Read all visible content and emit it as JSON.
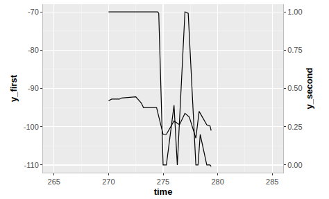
{
  "chart_data": {
    "type": "line",
    "x_label": "time",
    "y_label": "y_first",
    "y2_label": "y_second",
    "xlim": [
      264,
      286
    ],
    "xticks": [
      265,
      270,
      275,
      280,
      285
    ],
    "ylim": [
      -112,
      -68
    ],
    "yticks": [
      -110,
      -100,
      -90,
      -80,
      -70
    ],
    "y2lim": [
      -0.05,
      1.05
    ],
    "y2ticks": [
      {
        "value": 0,
        "label": "0.00"
      },
      {
        "value": 0.25,
        "label": "0.25"
      },
      {
        "value": 0.5,
        "label": "0.50"
      },
      {
        "value": 0.75,
        "label": "0.75"
      },
      {
        "value": 1,
        "label": "1.00"
      }
    ],
    "grid": true,
    "series": [
      {
        "color": "#000000",
        "axis": "y",
        "x": [
          270.0,
          270.3,
          271.0,
          271.2,
          272.5,
          273.0,
          273.2,
          274.0,
          274.4,
          275.0,
          275.3,
          276.0,
          276.5,
          277.0,
          277.4,
          278.0,
          278.3,
          279.0,
          279.3,
          279.4
        ],
        "values": [
          -93.2,
          -92.8,
          -92.8,
          -92.5,
          -92.2,
          -93.8,
          -95.0,
          -95.0,
          -95.0,
          -102.0,
          -102.0,
          -98.5,
          -99.5,
          -96.5,
          -97.5,
          -103.0,
          -96.0,
          -99.5,
          -99.8,
          -101.0
        ]
      },
      {
        "color": "#000000",
        "axis": "y2",
        "x": [
          270.0,
          274.5,
          274.6,
          275.0,
          275.3,
          276.0,
          276.3,
          277.0,
          277.3,
          278.0,
          278.2,
          278.4,
          279.0,
          279.3,
          279.4
        ],
        "values": [
          1.0,
          1.0,
          0.99,
          0.0,
          0.0,
          0.39,
          0.0,
          1.0,
          0.99,
          0.0,
          0.0,
          0.2,
          0.0,
          0.0,
          -0.01
        ]
      }
    ]
  }
}
